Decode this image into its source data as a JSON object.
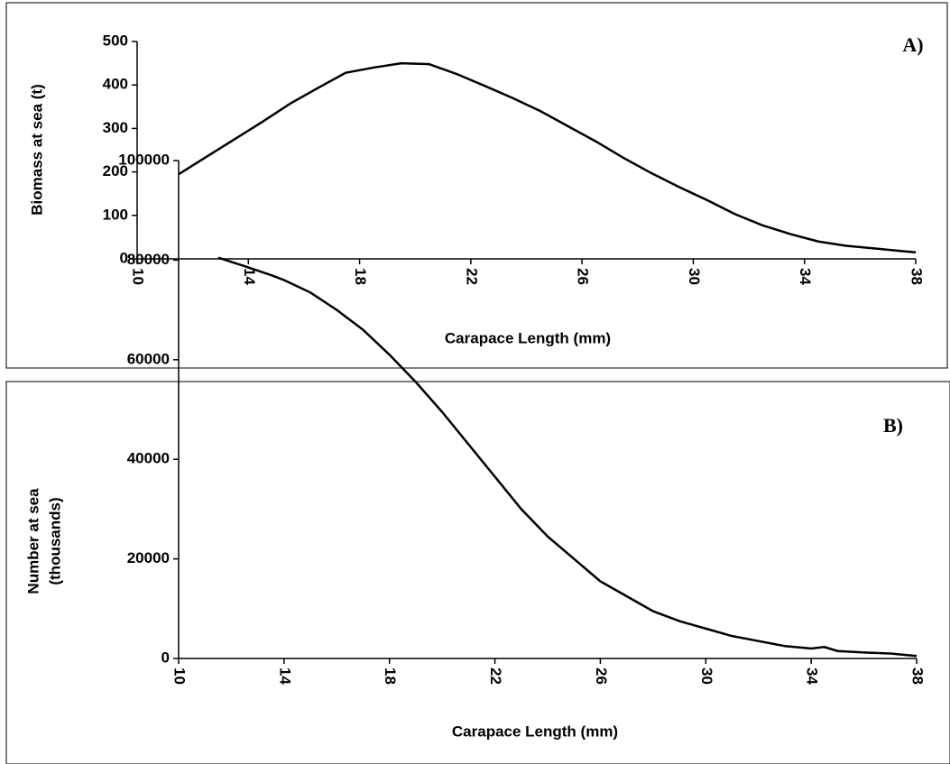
{
  "chart_data": [
    {
      "type": "line",
      "annotation": "A)",
      "xlabel": "Carapace Length (mm)",
      "ylabel": [
        "Biomass at sea (t)"
      ],
      "x": [
        11.5,
        12.5,
        13.5,
        14.5,
        15.5,
        16.5,
        17.5,
        18.5,
        19.5,
        20.5,
        21.5,
        22.5,
        23.5,
        24.5,
        25.5,
        26.5,
        27.5,
        28.5,
        29.5,
        30.5,
        31.5,
        32.5,
        33.5,
        34.5,
        35.5,
        36.5,
        37.5,
        38
      ],
      "series": [
        {
          "color": "#000000",
          "values": [
            195,
            235,
            275,
            315,
            357,
            393,
            428,
            440,
            450,
            448,
            425,
            398,
            370,
            340,
            305,
            270,
            232,
            197,
            165,
            135,
            103,
            77,
            57,
            40,
            30,
            24,
            18,
            15
          ]
        }
      ],
      "xlim": [
        10,
        38
      ],
      "xticks": [
        10,
        14,
        18,
        22,
        26,
        30,
        34,
        38
      ],
      "ylim": [
        0,
        500
      ],
      "yticks": [
        0,
        100,
        200,
        300,
        400,
        500
      ]
    },
    {
      "type": "line",
      "annotation": "B)",
      "xlabel": "Carapace Length (mm)",
      "ylabel": [
        "Number at sea",
        "(thousands)"
      ],
      "x": [
        11.5,
        12.5,
        13.5,
        14,
        15,
        16,
        17,
        18,
        19,
        20,
        21,
        22,
        23,
        24,
        25,
        26,
        27,
        28,
        29,
        30,
        31,
        32,
        33,
        34,
        34.5,
        35,
        36,
        37,
        38
      ],
      "series": [
        {
          "color": "#000000",
          "values": [
            80500,
            78800,
            77000,
            76000,
            73500,
            70000,
            66000,
            61000,
            55500,
            49500,
            43000,
            36500,
            30000,
            24500,
            20000,
            15500,
            12500,
            9500,
            7500,
            6000,
            4500,
            3500,
            2500,
            2000,
            2300,
            1500,
            1200,
            1000,
            500
          ]
        }
      ],
      "xlim": [
        10,
        38
      ],
      "xticks": [
        10,
        14,
        18,
        22,
        26,
        30,
        34,
        38
      ],
      "ylim": [
        0,
        100000
      ],
      "yticks": [
        0,
        20000,
        40000,
        60000,
        80000,
        100000
      ]
    }
  ]
}
